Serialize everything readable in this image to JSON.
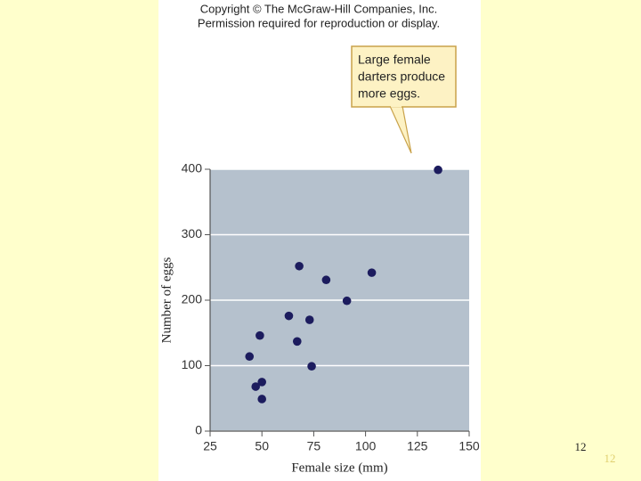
{
  "copyright": [
    "Copyright © The McGraw-Hill Companies, Inc.",
    "Permission required for reproduction or display."
  ],
  "chart_data": {
    "type": "scatter",
    "xlabel": "Female size (mm)",
    "ylabel": "Number of eggs",
    "annotation": [
      "Large female",
      "darters produce",
      "more eggs."
    ],
    "xlim": [
      25,
      150
    ],
    "ylim": [
      0,
      400
    ],
    "xticks": [
      25,
      50,
      75,
      100,
      125,
      150
    ],
    "yticks": [
      0,
      100,
      200,
      300,
      400
    ],
    "grid": true,
    "color": "#1c1c5e",
    "x": [
      44,
      47,
      50,
      50,
      49,
      63,
      67,
      68,
      73,
      74,
      81,
      91,
      103,
      135
    ],
    "values": [
      114,
      68,
      75,
      49,
      146,
      176,
      137,
      252,
      170,
      99,
      231,
      199,
      242,
      399
    ]
  },
  "slide_number": "12"
}
